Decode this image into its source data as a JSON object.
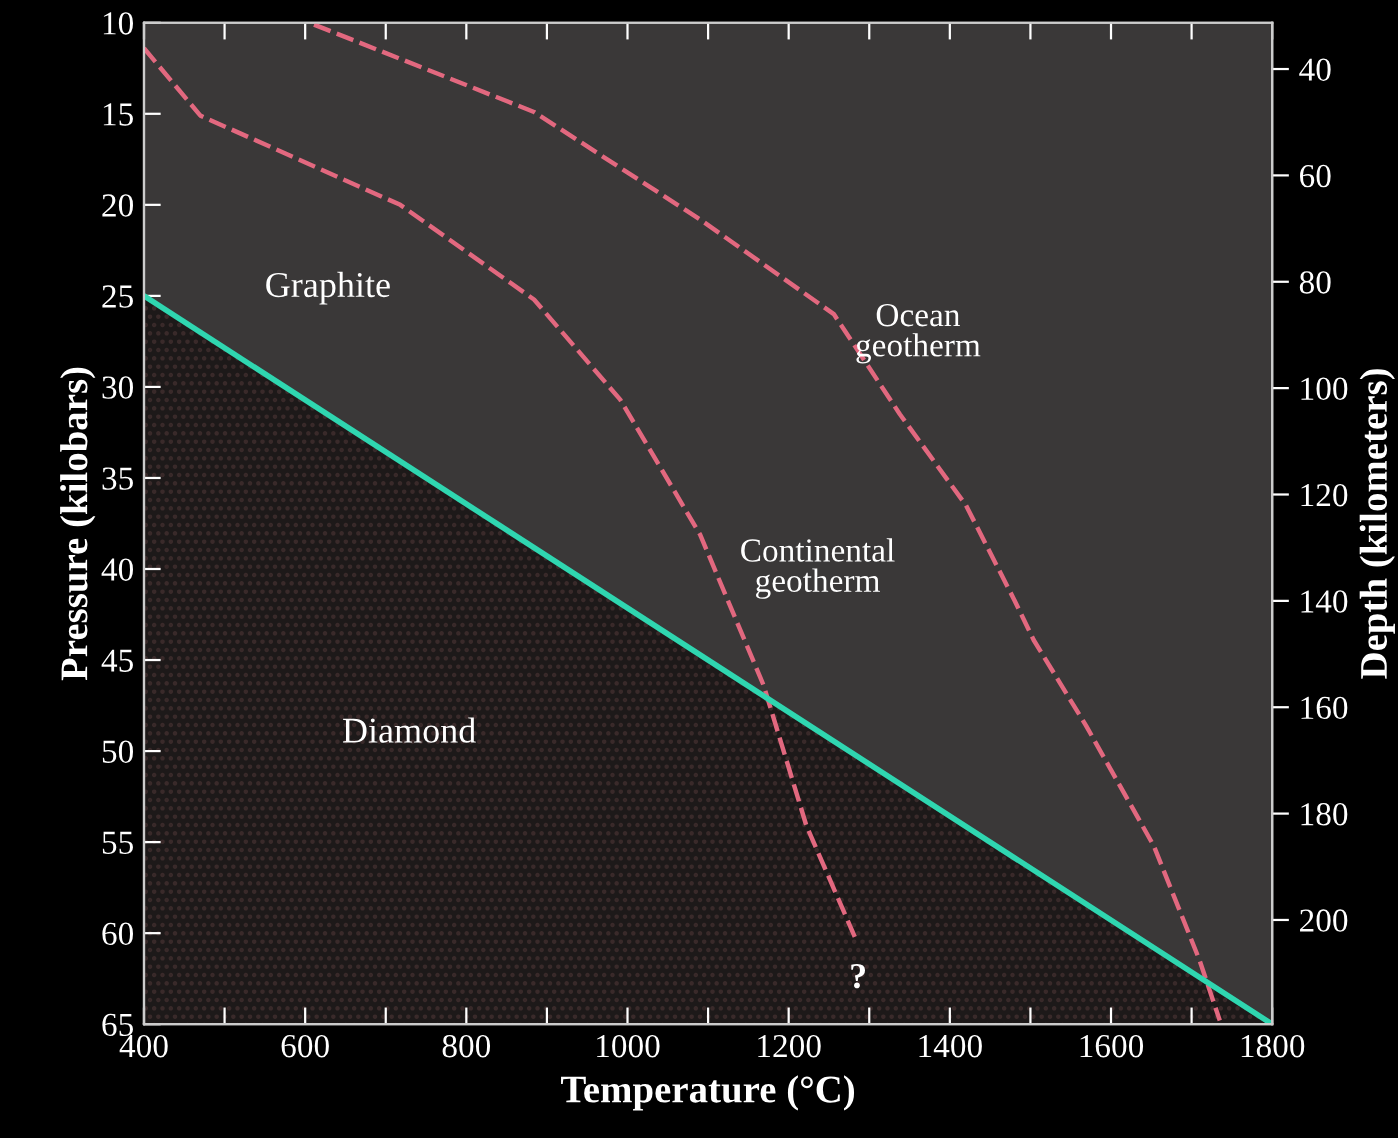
{
  "chart_data": {
    "type": "line",
    "xlabel": "Temperature (°C)",
    "ylabel": "Pressure (kilobars)",
    "y2label": "Depth (kilometers)",
    "xlim": [
      400,
      1800
    ],
    "xticks": [
      400,
      {
        "value": 500,
        "label": null
      },
      600,
      {
        "value": 700,
        "label": null
      },
      800,
      {
        "value": 900,
        "label": null
      },
      1000,
      {
        "value": 1100,
        "label": null
      },
      1200,
      {
        "value": 1300,
        "label": null
      },
      1400,
      {
        "value": 1500,
        "label": null
      },
      1600,
      {
        "value": 1700,
        "label": null
      },
      1800
    ],
    "ylim": [
      65,
      10
    ],
    "yticks": [
      10,
      15,
      20,
      25,
      30,
      35,
      40,
      45,
      50,
      55,
      60,
      65
    ],
    "y2lim": [
      219.6,
      31.3
    ],
    "y2ticks": [
      40,
      60,
      80,
      100,
      120,
      140,
      160,
      180,
      200
    ],
    "series": [
      {
        "type": "area",
        "color": "#2fd6b0",
        "x": [
          400,
          1800
        ],
        "values": [
          25,
          65
        ]
      },
      {
        "name": "Continental\ngeotherm",
        "line_style": "dashed",
        "color": "#e2687f",
        "x": [
          400,
          470,
          718,
          884,
          991,
          1090,
          1169,
          1222,
          1284
        ],
        "values": [
          11.4,
          15.1,
          20.0,
          25.2,
          30.7,
          38.1,
          46.4,
          54.1,
          60.4
        ]
      },
      {
        "name": "Ocean\ngeotherm",
        "line_style": "dashed",
        "color": "#e2687f",
        "x": [
          611,
          884,
          1090,
          1256,
          1338,
          1420,
          1480,
          1504,
          1569,
          1653,
          1710,
          1735
        ],
        "values": [
          10.1,
          14.9,
          20.8,
          26.0,
          31.5,
          36.5,
          41.7,
          43.9,
          48.6,
          55.2,
          61.5,
          64.8
        ]
      }
    ],
    "annotations": [
      "Graphite",
      "Diamond",
      "?"
    ],
    "grid": false,
    "legend": false
  }
}
